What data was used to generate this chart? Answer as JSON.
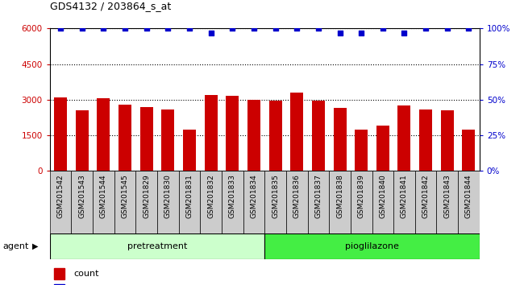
{
  "title": "GDS4132 / 203864_s_at",
  "categories": [
    "GSM201542",
    "GSM201543",
    "GSM201544",
    "GSM201545",
    "GSM201829",
    "GSM201830",
    "GSM201831",
    "GSM201832",
    "GSM201833",
    "GSM201834",
    "GSM201835",
    "GSM201836",
    "GSM201837",
    "GSM201838",
    "GSM201839",
    "GSM201840",
    "GSM201841",
    "GSM201842",
    "GSM201843",
    "GSM201844"
  ],
  "counts": [
    3100,
    2550,
    3050,
    2800,
    2700,
    2600,
    1750,
    3200,
    3150,
    3000,
    2950,
    3300,
    2950,
    2650,
    1750,
    1900,
    2750,
    2600,
    2550,
    1750
  ],
  "percentiles": [
    100,
    100,
    100,
    100,
    100,
    100,
    100,
    97,
    100,
    100,
    100,
    100,
    100,
    97,
    97,
    100,
    97,
    100,
    100,
    100
  ],
  "groups": [
    {
      "label": "pretreatment",
      "start": 0,
      "end": 9,
      "color": "#CCFFCC"
    },
    {
      "label": "pioglilazone",
      "start": 10,
      "end": 19,
      "color": "#44EE44"
    }
  ],
  "group_row_label": "agent",
  "ylim_left": [
    0,
    6000
  ],
  "ylim_right": [
    0,
    100
  ],
  "yticks_left": [
    0,
    1500,
    3000,
    4500,
    6000
  ],
  "yticks_right": [
    0,
    25,
    50,
    75,
    100
  ],
  "bar_color": "#CC0000",
  "dot_color": "#0000CC",
  "bg_color": "#FFFFFF",
  "xticklabel_bg": "#CCCCCC"
}
